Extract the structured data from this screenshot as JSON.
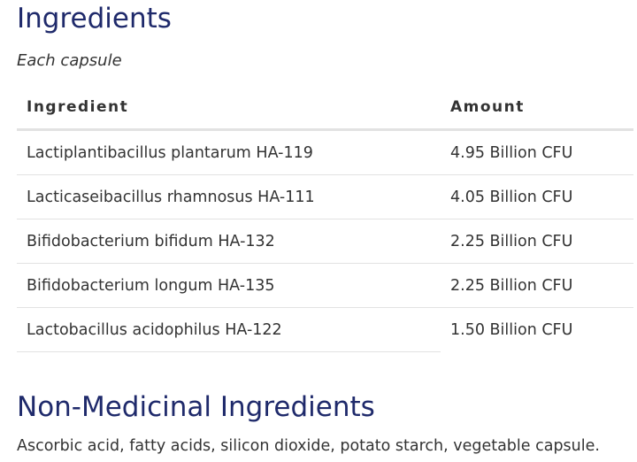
{
  "ingredients_section": {
    "title": "Ingredients",
    "subtitle": "Each capsule",
    "table": {
      "headers": [
        "Ingredient",
        "Amount"
      ],
      "rows": [
        {
          "ingredient": "Lactiplantibacillus plantarum HA-119",
          "amount": "4.95 Billion CFU"
        },
        {
          "ingredient": "Lacticaseibacillus rhamnosus HA-111",
          "amount": "4.05 Billion CFU"
        },
        {
          "ingredient": "Bifidobacterium bifidum HA-132",
          "amount": "2.25 Billion CFU"
        },
        {
          "ingredient": "Bifidobacterium longum HA-135",
          "amount": "2.25 Billion CFU"
        },
        {
          "ingredient": "Lactobacillus acidophilus HA-122",
          "amount": "1.50 Billion CFU"
        }
      ]
    }
  },
  "non_medicinal_section": {
    "title": "Non-Medicinal Ingredients",
    "text": "Ascorbic acid, fatty acids, silicon dioxide, potato starch, vegetable capsule."
  },
  "colors": {
    "heading": "#1f2a6b",
    "text": "#333333",
    "rule": "#e2e2e2"
  }
}
